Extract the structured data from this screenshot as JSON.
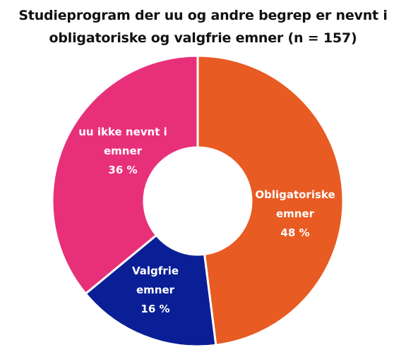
{
  "chart_data": {
    "type": "pie",
    "title_lines": [
      "Studieprogram der uu og andre begrep er nevnt i",
      "obligatoriske og valgfrie emner (n = 157)"
    ],
    "slices": [
      {
        "label_lines": [
          "Obligatoriske",
          "emner"
        ],
        "value": 48,
        "value_label": "48 %",
        "color": "#E85B22"
      },
      {
        "label_lines": [
          "Valgfrie",
          "emner"
        ],
        "value": 16,
        "value_label": "16 %",
        "color": "#0A1F96"
      },
      {
        "label_lines": [
          "uu ikke nevnt i",
          "emner"
        ],
        "value": 36,
        "value_label": "36 %",
        "color": "#E8307A"
      }
    ],
    "legend": "none",
    "donut": true
  }
}
